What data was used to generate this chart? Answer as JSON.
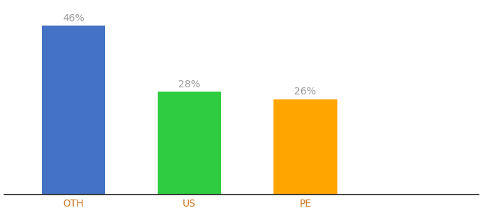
{
  "categories": [
    "OTH",
    "US",
    "PE"
  ],
  "values": [
    46,
    28,
    26
  ],
  "bar_colors": [
    "#4472C4",
    "#2ECC40",
    "#FFA500"
  ],
  "labels": [
    "46%",
    "28%",
    "26%"
  ],
  "ylim": [
    0,
    52
  ],
  "background_color": "#ffffff",
  "label_fontsize": 10,
  "tick_fontsize": 10,
  "bar_width": 0.55,
  "label_color": "#999999",
  "tick_color": "#cc7722"
}
